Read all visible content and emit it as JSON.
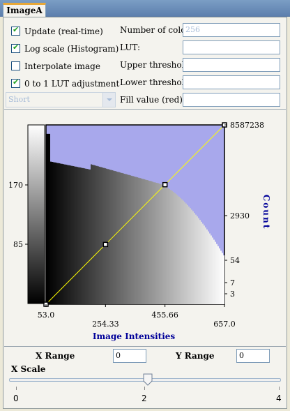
{
  "tab": {
    "label": "ImageA"
  },
  "checkboxes": [
    {
      "label": "Update (real-time)",
      "checked": true
    },
    {
      "label": "Log scale (Histogram)",
      "checked": true
    },
    {
      "label": "Interpolate image",
      "checked": false
    },
    {
      "label": "0 to 1 LUT adjustment",
      "checked": true
    }
  ],
  "combo": {
    "value": "Short"
  },
  "fields": [
    {
      "label": "Number of colors:",
      "value": "256",
      "disabled": true
    },
    {
      "label": "LUT:",
      "value": ""
    },
    {
      "label": "Upper threshold:",
      "value": ""
    },
    {
      "label": "Lower threshold:",
      "value": ""
    },
    {
      "label": "Fill value (red):",
      "value": ""
    }
  ],
  "chart_data": {
    "type": "histogram",
    "xlabel": "Image Intensities",
    "ylabel": "Count",
    "x_ticks": [
      "53.0",
      "254.33",
      "455.66",
      "657.0"
    ],
    "y_right_ticks": [
      "8587238",
      "2930",
      "54",
      "7",
      "3"
    ],
    "colorbar_ticks": [
      "170",
      "85"
    ],
    "xlim": [
      53.0,
      657.0
    ],
    "log_scale": true,
    "lut_line": [
      [
        53.0,
        0
      ],
      [
        254.33,
        85
      ],
      [
        455.66,
        170
      ],
      [
        657.0,
        255
      ]
    ],
    "colors": {
      "background": "#a8a8ec",
      "lut_line": "#ffff00",
      "axis_label": "#000099"
    }
  },
  "range": {
    "x_label": "X Range",
    "x_value": "0",
    "y_label": "Y Range",
    "y_value": "0"
  },
  "xscale": {
    "label": "X Scale",
    "min": "0",
    "mid": "2",
    "max": "4",
    "value": 2
  }
}
